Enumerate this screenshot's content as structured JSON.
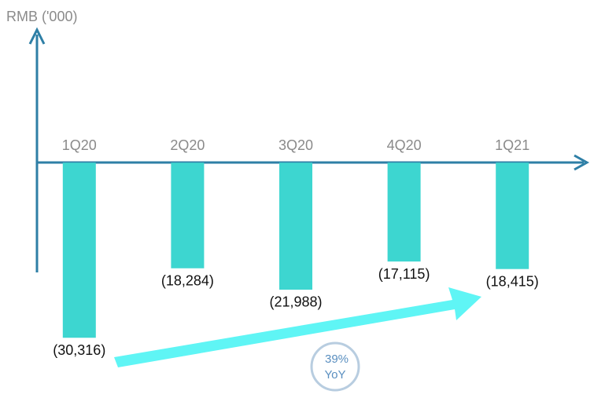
{
  "chart_data": {
    "type": "bar",
    "y_label": "RMB ('000)",
    "categories": [
      "1Q20",
      "2Q20",
      "3Q20",
      "4Q20",
      "1Q21"
    ],
    "values": [
      -30316,
      -18284,
      -21988,
      -17115,
      -18415
    ],
    "value_labels": [
      "(30,316)",
      "(18,284)",
      "(21,988)",
      "(17,115)",
      "(18,415)"
    ],
    "color": "#3dd6d0",
    "ylim": [
      -19000,
      23000
    ],
    "annotations": [
      "39%",
      "YoY"
    ]
  }
}
